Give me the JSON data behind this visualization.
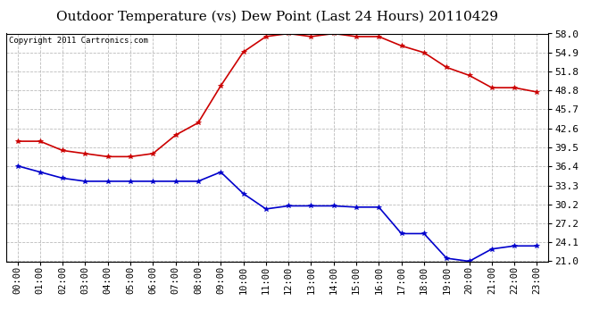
{
  "title": "Outdoor Temperature (vs) Dew Point (Last 24 Hours) 20110429",
  "copyright": "Copyright 2011 Cartronics.com",
  "x_labels": [
    "00:00",
    "01:00",
    "02:00",
    "03:00",
    "04:00",
    "05:00",
    "06:00",
    "07:00",
    "08:00",
    "09:00",
    "10:00",
    "11:00",
    "12:00",
    "13:00",
    "14:00",
    "15:00",
    "16:00",
    "17:00",
    "18:00",
    "19:00",
    "20:00",
    "21:00",
    "22:00",
    "23:00"
  ],
  "temp_values": [
    40.5,
    40.5,
    39.0,
    38.5,
    38.0,
    38.0,
    38.5,
    41.5,
    43.5,
    49.5,
    55.0,
    57.5,
    58.0,
    57.5,
    58.0,
    57.5,
    57.5,
    56.0,
    54.9,
    52.5,
    51.2,
    49.2,
    49.2,
    48.5
  ],
  "dew_values": [
    36.5,
    35.5,
    34.5,
    34.0,
    34.0,
    34.0,
    34.0,
    34.0,
    34.0,
    35.5,
    32.0,
    29.5,
    30.0,
    30.0,
    30.0,
    29.8,
    29.8,
    25.5,
    25.5,
    21.5,
    21.0,
    23.0,
    23.5,
    23.5
  ],
  "temp_color": "#cc0000",
  "dew_color": "#0000cc",
  "marker": "*",
  "marker_size": 4,
  "line_width": 1.2,
  "y_min": 21.0,
  "y_max": 58.0,
  "y_ticks": [
    21.0,
    24.1,
    27.2,
    30.2,
    33.3,
    36.4,
    39.5,
    42.6,
    45.7,
    48.8,
    51.8,
    54.9,
    58.0
  ],
  "bg_color": "#ffffff",
  "plot_bg_color": "#ffffff",
  "grid_color": "#bbbbbb",
  "title_fontsize": 11,
  "copyright_fontsize": 6.5,
  "tick_fontsize": 7.5,
  "ytick_fontsize": 8
}
